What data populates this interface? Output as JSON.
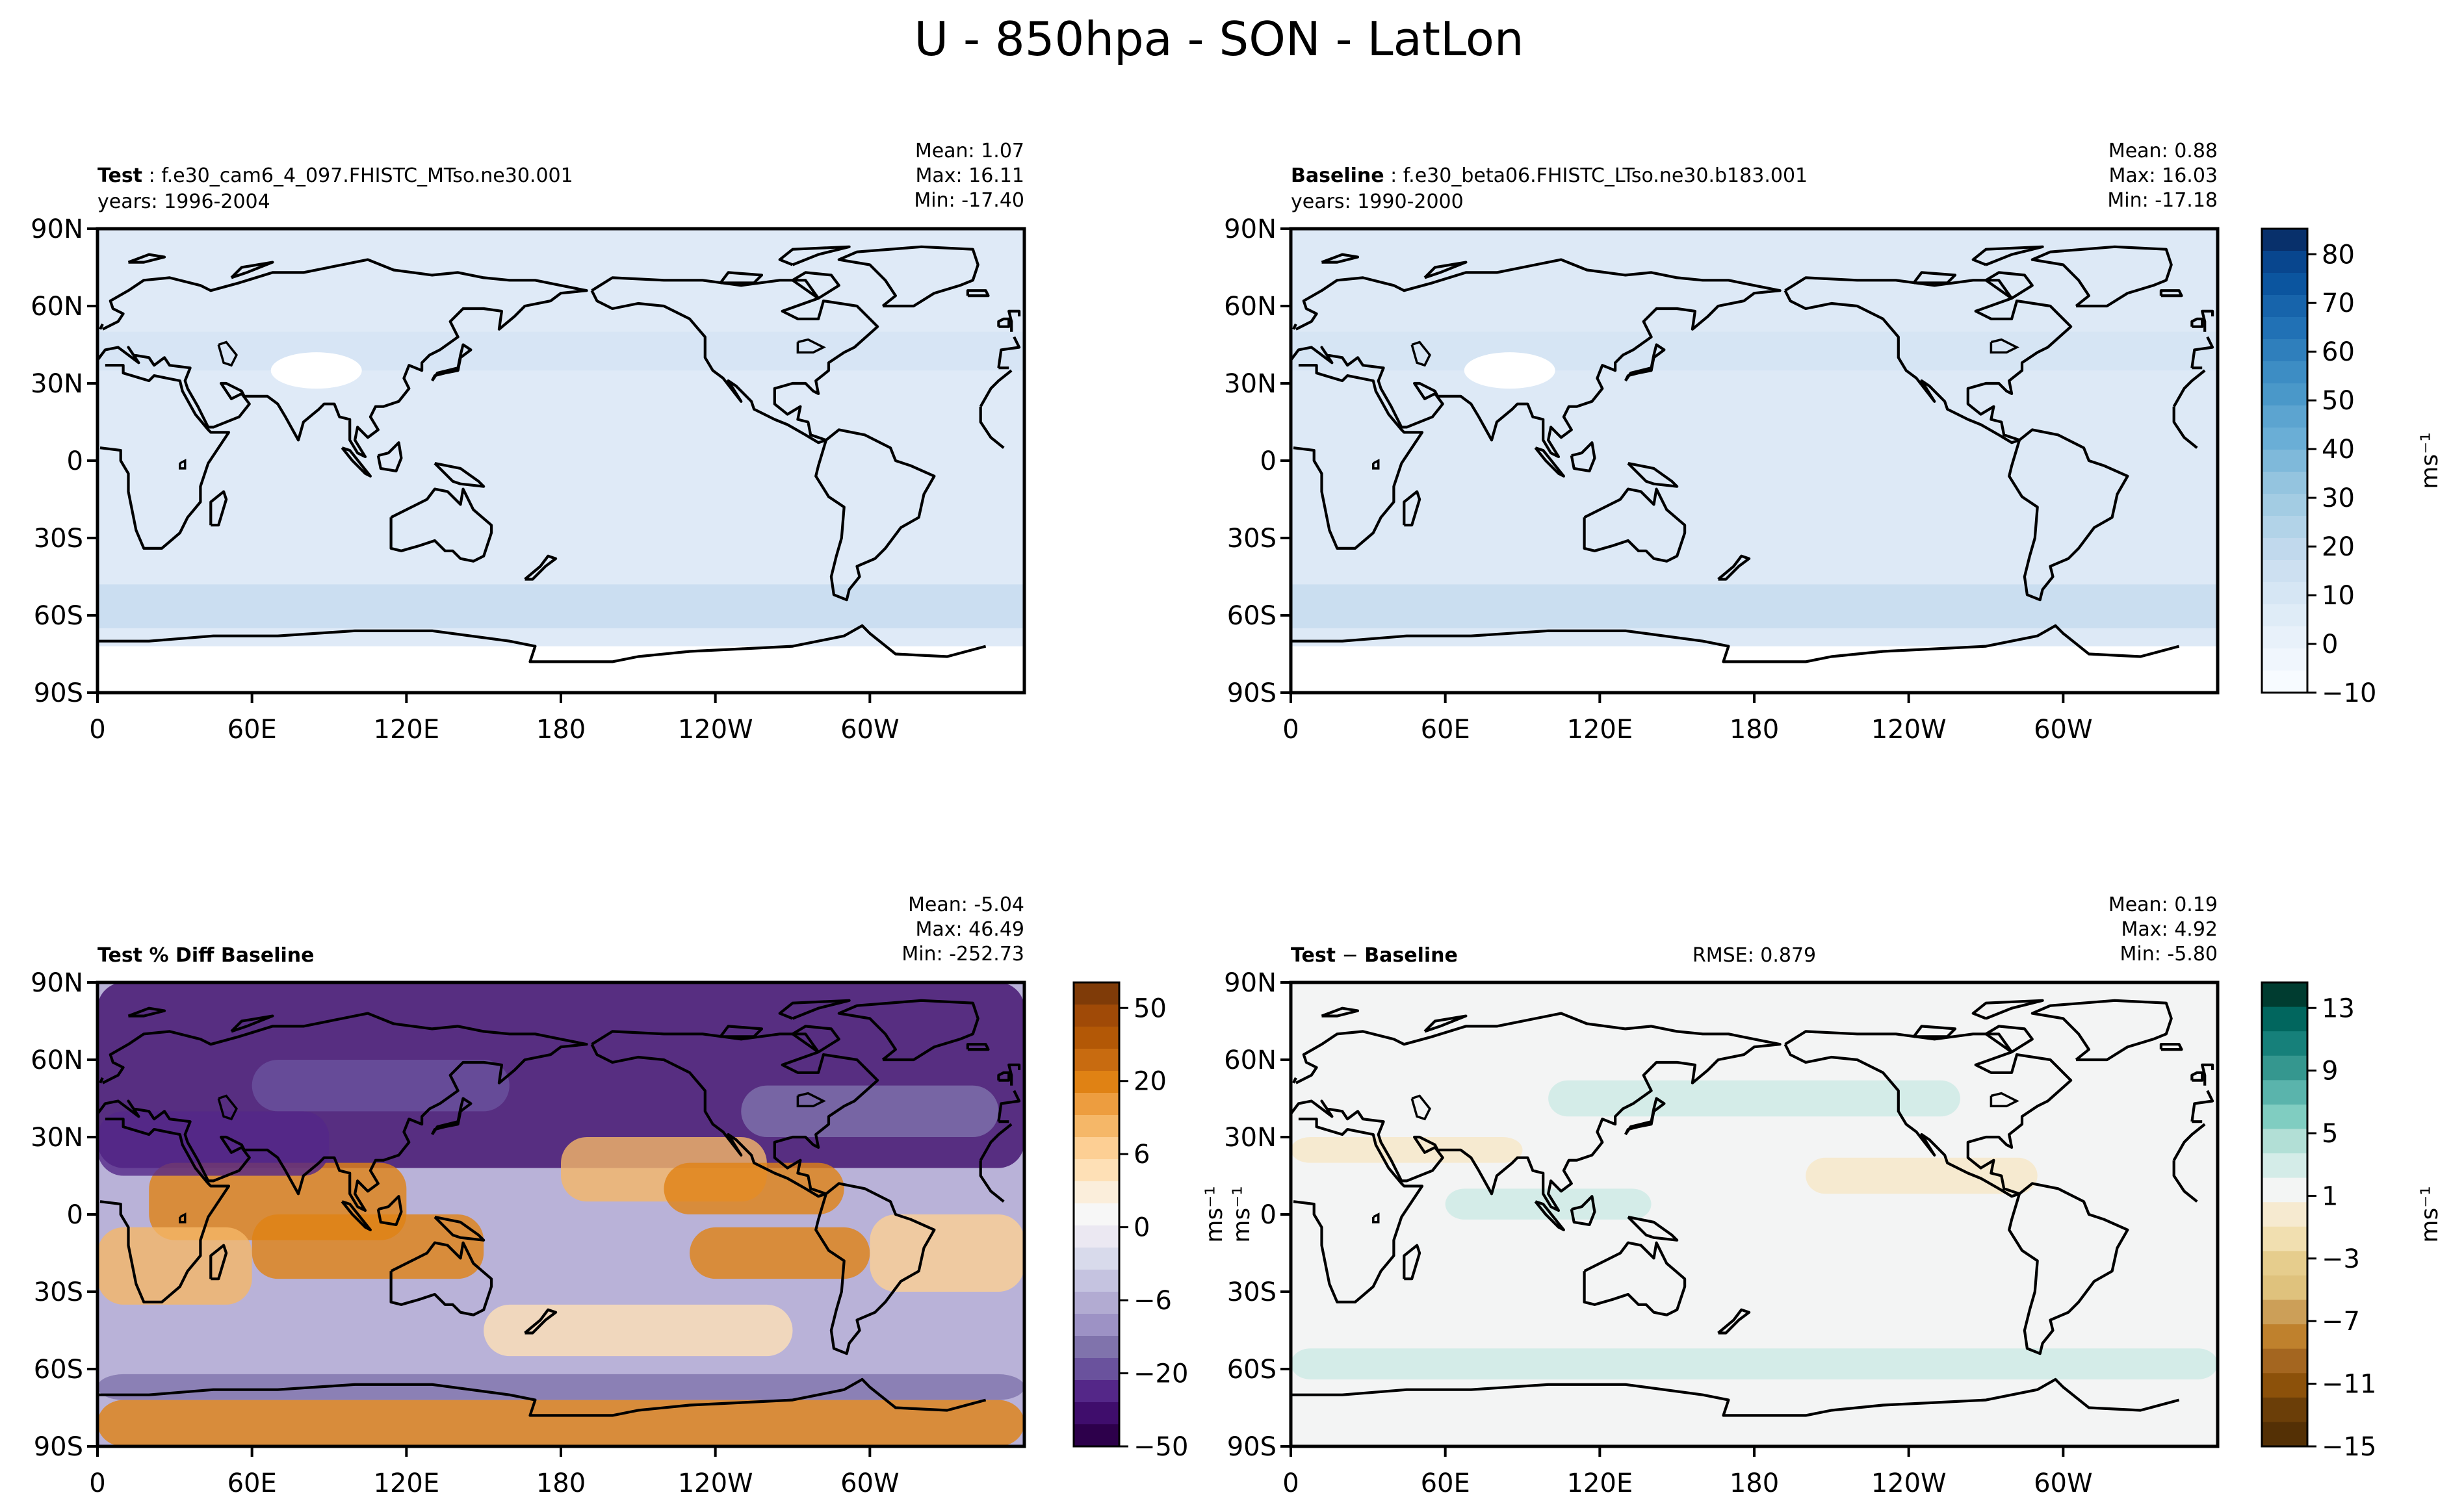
{
  "title": "U - 850hpa - SON - LatLon",
  "lon_ticks": [
    "0",
    "60E",
    "120E",
    "180",
    "120W",
    "60W"
  ],
  "lat_ticks": [
    "90N",
    "60N",
    "30N",
    "0",
    "30S",
    "60S",
    "90S"
  ],
  "colors": {
    "test_fill": "#dfeaf7",
    "baseline_fill": "#dde9f6",
    "diff_fill": "#f3f4f4",
    "land_outline": "#000000"
  },
  "chart_data": [
    {
      "type": "heatmap",
      "panel": "test",
      "title_bold": "Test",
      "title_rest": ": f.e30_cam6_4_097.FHISTC_MTso.ne30.001",
      "subtitle": "years: 1996-2004",
      "stats": [
        "Mean:  1.07",
        "Max: 16.11",
        "Min: -17.40"
      ],
      "xlim": [
        0,
        360
      ],
      "ylim": [
        -90,
        90
      ]
    },
    {
      "type": "heatmap",
      "panel": "baseline",
      "title_bold": "Baseline",
      "title_rest": ": f.e30_beta06.FHISTC_LTso.ne30.b183.001",
      "subtitle": "years: 1990-2000",
      "stats": [
        "Mean:  0.88",
        "Max: 16.03",
        "Min: -17.18"
      ],
      "xlim": [
        0,
        360
      ],
      "ylim": [
        -90,
        90
      ],
      "colorbar": {
        "label": "ms⁻¹",
        "ticks": [
          "80",
          "70",
          "60",
          "50",
          "40",
          "30",
          "20",
          "10",
          "0",
          "−10"
        ],
        "colors": [
          "#08306b",
          "#08468e",
          "#0b559f",
          "#1764ab",
          "#2171b5",
          "#2f7fbc",
          "#3d8dc4",
          "#4a98c9",
          "#5ca4d0",
          "#6aaed6",
          "#7fb9da",
          "#94c4df",
          "#a3cce3",
          "#b2d3e8",
          "#c1d9ed",
          "#cde0f1",
          "#d6e6f4",
          "#dfecf7",
          "#e8f1fa",
          "#f0f6fd",
          "#f7fbff"
        ]
      }
    },
    {
      "type": "heatmap",
      "panel": "percent-diff",
      "title_bold": "Test % Diff Baseline",
      "title_rest": "",
      "subtitle": "",
      "stats": [
        "Mean: -5.04",
        "Max: 46.49",
        "Min: -252.73"
      ],
      "xlim": [
        0,
        360
      ],
      "ylim": [
        -90,
        90
      ],
      "colorbar": {
        "label": "ms⁻¹",
        "ticks": [
          "50",
          "20",
          "6",
          "0",
          "−6",
          "−20",
          "−50"
        ],
        "colors": [
          "#7f3b08",
          "#a04a07",
          "#b35806",
          "#c86b10",
          "#e08214",
          "#ed9d3f",
          "#f5b768",
          "#fdcf94",
          "#fee0b6",
          "#fbeedb",
          "#f7f7f7",
          "#ebe8f2",
          "#d8daeb",
          "#c5c3e0",
          "#b2abd2",
          "#9d92c5",
          "#8073ac",
          "#6a529d",
          "#542788",
          "#3f0d6c",
          "#2d004b"
        ]
      }
    },
    {
      "type": "heatmap",
      "panel": "difference",
      "title_bold": "Test",
      "title_minus": "−",
      "title_rest": "Baseline",
      "subtitle": "",
      "rmse": "RMSE: 0.879",
      "stats": [
        "Mean:  0.19",
        "Max:  4.92",
        "Min: -5.80"
      ],
      "xlim": [
        0,
        360
      ],
      "ylim": [
        -90,
        90
      ],
      "colorbar": {
        "label": "ms⁻¹",
        "ticks": [
          "13",
          "9",
          "5",
          "1",
          "−3",
          "−7",
          "−11",
          "−15"
        ],
        "colors": [
          "#003c30",
          "#01665e",
          "#16807a",
          "#35978f",
          "#5ab4ac",
          "#80cdc1",
          "#b2dfd6",
          "#d4ece8",
          "#f3f5f4",
          "#f6ead0",
          "#f1dfb0",
          "#e6cd8d",
          "#dfc27d",
          "#cc9f58",
          "#bf812d",
          "#a46620",
          "#8c510a",
          "#6b3e08",
          "#543005"
        ]
      }
    }
  ]
}
